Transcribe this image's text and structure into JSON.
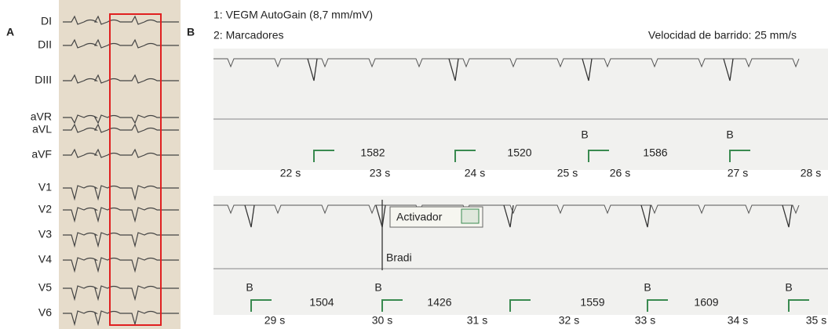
{
  "panel_a": {
    "label": "A",
    "leads": [
      "DI",
      "DII",
      "DIII",
      "aVR",
      "aVL",
      "aVF",
      "V1",
      "V2",
      "V3",
      "V4",
      "V5",
      "V6"
    ]
  },
  "panel_b": {
    "label": "B",
    "header": {
      "line1": "1: VEGM AutoGain (8,7 mm/mV)",
      "line2": "2: Marcadores",
      "speed": "Velocidad de barrido: 25 mm/s"
    },
    "strips": [
      {
        "times": [
          "22 s",
          "23 s",
          "24 s",
          "25 s",
          "26 s",
          "27 s",
          "28 s"
        ],
        "intervals": [
          "1582",
          "1520",
          "1586"
        ],
        "markers": [
          "B",
          "B"
        ]
      },
      {
        "annotation": "Activador",
        "event": "Bradi",
        "times": [
          "29 s",
          "30 s",
          "31 s",
          "32 s",
          "33 s",
          "34 s",
          "35 s"
        ],
        "intervals": [
          "1504",
          "1426",
          "1559",
          "1609"
        ],
        "markers": [
          "B",
          "B",
          "B",
          "B"
        ]
      }
    ]
  }
}
